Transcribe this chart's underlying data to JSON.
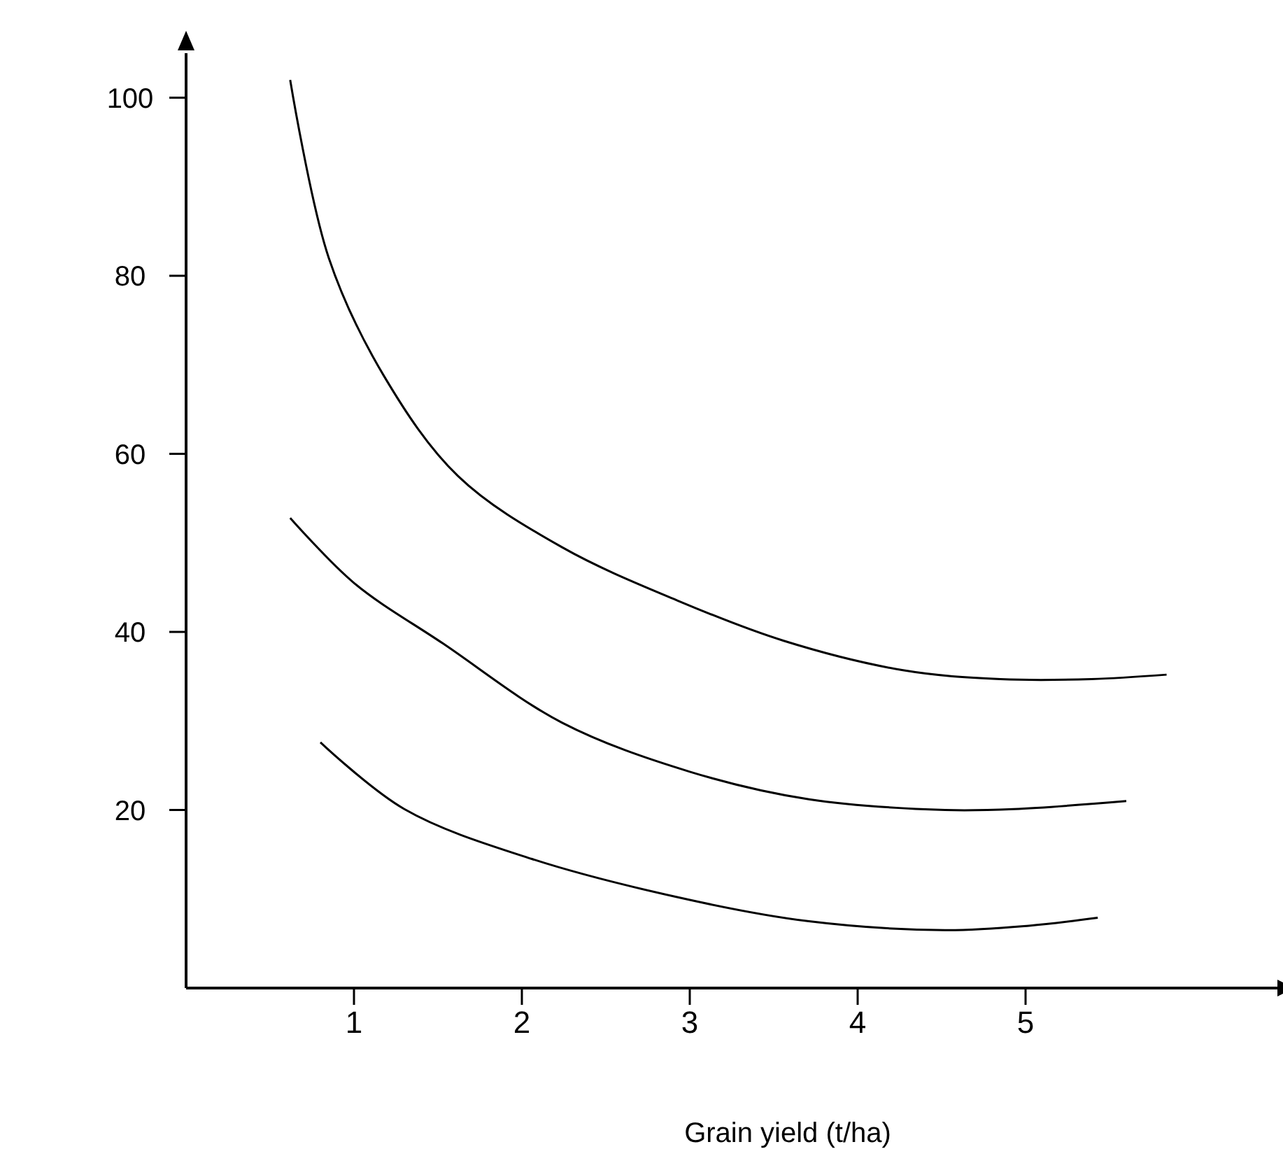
{
  "chart_data": {
    "type": "line",
    "xlabel": "Grain yield (t/ha)",
    "xlim": [
      0,
      6.5
    ],
    "xticks": [
      1,
      2,
      3,
      4,
      5
    ],
    "ylim": [
      0,
      105
    ],
    "yticks": [
      20,
      40,
      60,
      80,
      100
    ],
    "grid": false,
    "marker": "none",
    "line_style": "solid",
    "series": [
      {
        "color": "#000000",
        "x": [
          0.62,
          0.85,
          1.18,
          1.62,
          2.24,
          2.93,
          3.56,
          4.27,
          4.85,
          5.39,
          5.84
        ],
        "values": [
          102,
          82,
          68.7,
          57.5,
          49.5,
          43.5,
          39,
          35.7,
          34.7,
          34.7,
          35.2
        ]
      },
      {
        "color": "#000000",
        "x": [
          0.62,
          1,
          1.53,
          2.24,
          3,
          3.71,
          4.52,
          4.93,
          5.6
        ],
        "values": [
          52.8,
          45.5,
          38.7,
          29.8,
          24.3,
          21.2,
          20,
          20.1,
          21
        ]
      },
      {
        "color": "#000000",
        "x": [
          0.8,
          1.3,
          2.06,
          3,
          3.71,
          4.52,
          5.02,
          5.43
        ],
        "values": [
          27.6,
          20.1,
          14.5,
          9.9,
          7.5,
          6.5,
          7,
          7.9
        ]
      }
    ]
  }
}
